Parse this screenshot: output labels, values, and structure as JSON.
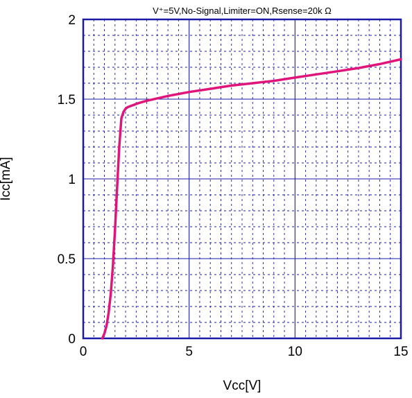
{
  "chart_data": {
    "type": "line",
    "title": "V⁺=5V,No-Signal,Limiter=ON,Rsense=20k Ω",
    "xlabel": "Vcc[V]",
    "ylabel": "Icc[mA]",
    "xlim": [
      0,
      15
    ],
    "ylim": [
      0,
      2
    ],
    "x_ticks": [
      0,
      5,
      10,
      15
    ],
    "x_tick_labels": [
      "0",
      "5",
      "10",
      "15"
    ],
    "y_ticks": [
      0,
      0.5,
      1,
      1.5,
      2
    ],
    "y_tick_labels": [
      "0",
      "0.5",
      "1",
      "1.5",
      "2"
    ],
    "grid": true,
    "colors": {
      "plot_frame": "#1a1aa6",
      "major_grid": "#1a1aa6",
      "minor_grid": "#1a1aa6",
      "series": "#e0157a"
    },
    "series": [
      {
        "x": [
          0.9,
          1.0,
          1.1,
          1.2,
          1.3,
          1.4,
          1.5,
          1.6,
          1.7,
          1.8,
          1.9,
          1.95,
          2.0,
          2.1,
          2.3,
          2.6,
          3.0,
          4.0,
          5.0,
          6.0,
          7.0,
          8.0,
          9.0,
          10.0,
          11.0,
          12.0,
          13.0,
          14.0,
          15.0
        ],
        "y": [
          0.0,
          0.03,
          0.08,
          0.16,
          0.28,
          0.45,
          0.68,
          0.95,
          1.2,
          1.38,
          1.42,
          1.43,
          1.44,
          1.45,
          1.46,
          1.475,
          1.49,
          1.52,
          1.545,
          1.565,
          1.585,
          1.6,
          1.615,
          1.635,
          1.655,
          1.675,
          1.695,
          1.72,
          1.75
        ]
      }
    ]
  }
}
